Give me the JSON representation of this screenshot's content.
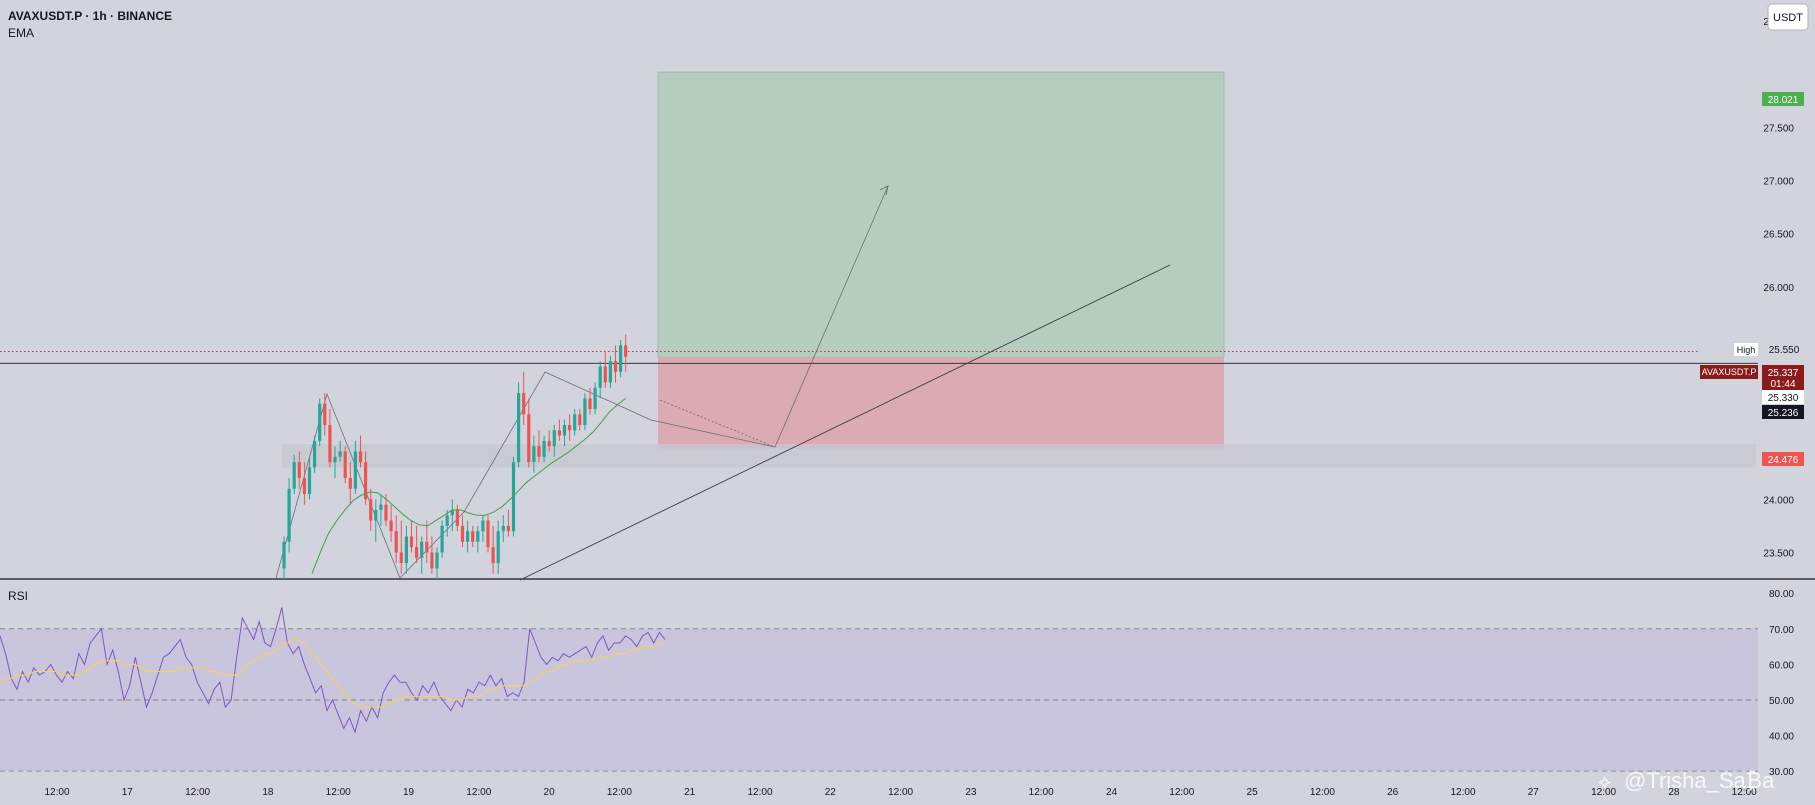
{
  "header": {
    "symbol": "AVAXUSDT.P · 1h · BINANCE",
    "indicator": "EMA",
    "currency_button": "USDT"
  },
  "rsi_panel": {
    "label": "RSI"
  },
  "price_labels": {
    "take_profit": "28.021",
    "high_label": "High",
    "high_value": "25.550",
    "symbol_tag": "AVAXUSDT.P",
    "last_price": "25.337",
    "countdown": "01:44",
    "line_price": "25.330",
    "ema_value": "25.236",
    "stop_loss": "24.476"
  },
  "watermark": "@Trisha_Sa₿a",
  "colors": {
    "background": "#d1d4dc",
    "bull": "#26a69a",
    "bear": "#ef5350",
    "ema": "#43a047",
    "rsi": "#7e57c2",
    "rsi_ma": "#f7d54a",
    "profit_zone": "#b5cdbe",
    "loss_zone": "#dcaab2",
    "tp_label": "#4caf50",
    "sl_label": "#ef5350",
    "symbol_tag": "#8b1a1a"
  },
  "chart_data": [
    {
      "type": "candlestick",
      "title": "AVAXUSDT.P · 1h · BINANCE",
      "y_ticks": [
        "28.500",
        "27.500",
        "27.000",
        "26.500",
        "26.000",
        "24.000",
        "23.500"
      ],
      "x_ticks": [
        "12:00",
        "17",
        "12:00",
        "18",
        "12:00",
        "19",
        "12:00",
        "20",
        "12:00",
        "21",
        "12:00",
        "22",
        "12:00",
        "23",
        "12:00",
        "24",
        "12:00",
        "25",
        "12:00",
        "26",
        "12:00",
        "27",
        "12:00",
        "28",
        "12:00"
      ],
      "ylim": [
        23.25,
        28.7
      ],
      "grid": false,
      "series": [
        {
          "name": "EMA",
          "values": [
            23.3,
            23.5,
            23.68,
            23.8,
            23.9,
            23.99,
            24.04,
            24.07,
            24.06,
            24.0,
            23.93,
            23.86,
            23.8,
            23.76,
            23.75,
            23.8,
            23.85,
            23.9,
            23.9,
            23.87,
            23.85,
            23.85,
            23.88,
            23.93,
            24.0,
            24.08,
            24.16,
            24.22,
            24.28,
            24.34,
            24.39,
            24.44,
            24.5,
            24.56,
            24.63,
            24.72,
            24.82,
            24.89,
            24.95
          ]
        }
      ],
      "candles": [
        {
          "o": 23.35,
          "h": 23.65,
          "l": 23.25,
          "c": 23.6
        },
        {
          "o": 23.6,
          "h": 24.2,
          "l": 23.5,
          "c": 24.1
        },
        {
          "o": 24.1,
          "h": 24.42,
          "l": 24.05,
          "c": 24.35
        },
        {
          "o": 24.35,
          "h": 24.45,
          "l": 24.1,
          "c": 24.2
        },
        {
          "o": 24.2,
          "h": 24.35,
          "l": 23.95,
          "c": 24.05
        },
        {
          "o": 24.05,
          "h": 24.4,
          "l": 24.0,
          "c": 24.3
        },
        {
          "o": 24.3,
          "h": 24.6,
          "l": 24.25,
          "c": 24.55
        },
        {
          "o": 24.55,
          "h": 24.95,
          "l": 24.5,
          "c": 24.9
        },
        {
          "o": 24.9,
          "h": 25.0,
          "l": 24.6,
          "c": 24.7
        },
        {
          "o": 24.7,
          "h": 24.85,
          "l": 24.3,
          "c": 24.35
        },
        {
          "o": 24.35,
          "h": 24.5,
          "l": 24.2,
          "c": 24.4
        },
        {
          "o": 24.4,
          "h": 24.55,
          "l": 24.35,
          "c": 24.45
        },
        {
          "o": 24.45,
          "h": 24.5,
          "l": 24.15,
          "c": 24.2
        },
        {
          "o": 24.2,
          "h": 24.35,
          "l": 23.95,
          "c": 24.1
        },
        {
          "o": 24.1,
          "h": 24.55,
          "l": 24.05,
          "c": 24.45
        },
        {
          "o": 24.45,
          "h": 24.6,
          "l": 24.3,
          "c": 24.35
        },
        {
          "o": 24.35,
          "h": 24.45,
          "l": 23.95,
          "c": 24.0
        },
        {
          "o": 24.0,
          "h": 24.1,
          "l": 23.7,
          "c": 23.8
        },
        {
          "o": 23.8,
          "h": 24.0,
          "l": 23.6,
          "c": 23.9
        },
        {
          "o": 23.9,
          "h": 24.05,
          "l": 23.75,
          "c": 23.95
        },
        {
          "o": 23.95,
          "h": 24.05,
          "l": 23.75,
          "c": 23.8
        },
        {
          "o": 23.8,
          "h": 23.95,
          "l": 23.6,
          "c": 23.7
        },
        {
          "o": 23.7,
          "h": 23.85,
          "l": 23.4,
          "c": 23.5
        },
        {
          "o": 23.5,
          "h": 23.8,
          "l": 23.3,
          "c": 23.4
        },
        {
          "o": 23.4,
          "h": 23.75,
          "l": 23.3,
          "c": 23.65
        },
        {
          "o": 23.65,
          "h": 23.8,
          "l": 23.5,
          "c": 23.55
        },
        {
          "o": 23.55,
          "h": 23.75,
          "l": 23.4,
          "c": 23.45
        },
        {
          "o": 23.45,
          "h": 23.65,
          "l": 23.3,
          "c": 23.6
        },
        {
          "o": 23.6,
          "h": 23.8,
          "l": 23.4,
          "c": 23.5
        },
        {
          "o": 23.5,
          "h": 23.65,
          "l": 23.3,
          "c": 23.35
        },
        {
          "o": 23.35,
          "h": 23.55,
          "l": 23.25,
          "c": 23.5
        },
        {
          "o": 23.5,
          "h": 23.8,
          "l": 23.45,
          "c": 23.75
        },
        {
          "o": 23.75,
          "h": 23.9,
          "l": 23.65,
          "c": 23.85
        },
        {
          "o": 23.85,
          "h": 24.0,
          "l": 23.7,
          "c": 23.9
        },
        {
          "o": 23.9,
          "h": 23.95,
          "l": 23.7,
          "c": 23.75
        },
        {
          "o": 23.75,
          "h": 23.85,
          "l": 23.55,
          "c": 23.6
        },
        {
          "o": 23.6,
          "h": 23.8,
          "l": 23.5,
          "c": 23.7
        },
        {
          "o": 23.7,
          "h": 23.75,
          "l": 23.55,
          "c": 23.6
        },
        {
          "o": 23.6,
          "h": 23.75,
          "l": 23.5,
          "c": 23.7
        },
        {
          "o": 23.7,
          "h": 23.85,
          "l": 23.6,
          "c": 23.8
        },
        {
          "o": 23.8,
          "h": 23.85,
          "l": 23.5,
          "c": 23.55
        },
        {
          "o": 23.55,
          "h": 23.75,
          "l": 23.3,
          "c": 23.4
        },
        {
          "o": 23.4,
          "h": 23.8,
          "l": 23.3,
          "c": 23.7
        },
        {
          "o": 23.7,
          "h": 23.85,
          "l": 23.6,
          "c": 23.75
        },
        {
          "o": 23.75,
          "h": 23.9,
          "l": 23.65,
          "c": 23.7
        },
        {
          "o": 23.7,
          "h": 24.4,
          "l": 23.65,
          "c": 24.35
        },
        {
          "o": 24.35,
          "h": 25.1,
          "l": 24.3,
          "c": 25.0
        },
        {
          "o": 25.0,
          "h": 25.2,
          "l": 24.7,
          "c": 24.8
        },
        {
          "o": 24.8,
          "h": 24.95,
          "l": 24.3,
          "c": 24.35
        },
        {
          "o": 24.35,
          "h": 24.6,
          "l": 24.25,
          "c": 24.5
        },
        {
          "o": 24.5,
          "h": 24.65,
          "l": 24.35,
          "c": 24.4
        },
        {
          "o": 24.4,
          "h": 24.6,
          "l": 24.35,
          "c": 24.55
        },
        {
          "o": 24.55,
          "h": 24.65,
          "l": 24.45,
          "c": 24.5
        },
        {
          "o": 24.5,
          "h": 24.7,
          "l": 24.4,
          "c": 24.65
        },
        {
          "o": 24.65,
          "h": 24.75,
          "l": 24.55,
          "c": 24.6
        },
        {
          "o": 24.6,
          "h": 24.75,
          "l": 24.5,
          "c": 24.7
        },
        {
          "o": 24.7,
          "h": 24.8,
          "l": 24.55,
          "c": 24.65
        },
        {
          "o": 24.65,
          "h": 24.85,
          "l": 24.6,
          "c": 24.8
        },
        {
          "o": 24.8,
          "h": 24.85,
          "l": 24.65,
          "c": 24.7
        },
        {
          "o": 24.7,
          "h": 25.0,
          "l": 24.65,
          "c": 24.95
        },
        {
          "o": 24.95,
          "h": 25.05,
          "l": 24.8,
          "c": 24.85
        },
        {
          "o": 24.85,
          "h": 25.1,
          "l": 24.8,
          "c": 25.05
        },
        {
          "o": 25.05,
          "h": 25.3,
          "l": 24.95,
          "c": 25.25
        },
        {
          "o": 25.25,
          "h": 25.4,
          "l": 25.05,
          "c": 25.1
        },
        {
          "o": 25.1,
          "h": 25.35,
          "l": 25.05,
          "c": 25.3
        },
        {
          "o": 25.3,
          "h": 25.45,
          "l": 25.1,
          "c": 25.2
        },
        {
          "o": 25.2,
          "h": 25.5,
          "l": 25.15,
          "c": 25.45
        },
        {
          "o": 25.45,
          "h": 25.55,
          "l": 25.2,
          "c": 25.34
        }
      ],
      "levels": {
        "take_profit": 28.021,
        "entry": 25.337,
        "stop_loss": 24.476,
        "high": 25.55
      }
    },
    {
      "type": "line",
      "title": "RSI",
      "y_ticks": [
        "80.00",
        "70.00",
        "60.00",
        "50.00",
        "40.00",
        "30.00"
      ],
      "ylim": [
        27.5,
        84
      ],
      "bands": [
        30,
        50,
        70
      ],
      "series": [
        {
          "name": "RSI",
          "values": [
            68,
            63,
            56,
            53,
            58,
            55,
            59,
            57,
            58,
            60,
            57,
            55,
            58,
            56,
            63,
            60,
            66,
            68,
            70,
            60,
            64,
            58,
            50,
            54,
            62,
            55,
            48,
            52,
            57,
            62,
            63,
            65,
            67,
            62,
            60,
            55,
            52,
            49,
            53,
            55,
            48,
            50,
            62,
            73,
            70,
            67,
            72,
            66,
            65,
            70,
            76,
            66,
            63,
            65,
            60,
            56,
            52,
            54,
            47,
            50,
            46,
            42,
            45,
            41,
            47,
            44,
            48,
            45,
            52,
            55,
            57,
            55,
            55,
            52,
            50,
            54,
            52,
            55,
            51,
            49,
            47,
            50,
            48,
            53,
            52,
            55,
            54,
            57,
            54,
            56,
            51,
            52,
            51,
            55,
            70,
            66,
            62,
            60,
            62,
            61,
            63,
            62,
            63,
            64,
            65,
            62,
            66,
            68,
            64,
            66,
            66,
            68,
            67,
            65,
            68,
            69,
            66,
            69,
            67
          ]
        },
        {
          "name": "RSI-based MA",
          "values": [
            55,
            56,
            56,
            57,
            57,
            57,
            58,
            58,
            58,
            58,
            58,
            57,
            57,
            57,
            57,
            58,
            59,
            60,
            61,
            61,
            61,
            61,
            60,
            60,
            60,
            59,
            58,
            58,
            58,
            58,
            58,
            58,
            59,
            59,
            59,
            59,
            59,
            58,
            58,
            57,
            57,
            57,
            57,
            58,
            60,
            61,
            62,
            63,
            63,
            64,
            66,
            66,
            67,
            67,
            66,
            64,
            62,
            60,
            58,
            56,
            54,
            52,
            50,
            49,
            48,
            48,
            48,
            48,
            48,
            49,
            50,
            50,
            51,
            51,
            51,
            51,
            51,
            51,
            51,
            51,
            50,
            50,
            50,
            51,
            51,
            51,
            52,
            53,
            53,
            54,
            54,
            54,
            54,
            54,
            55,
            56,
            57,
            58,
            58,
            59,
            60,
            60,
            61,
            61,
            61,
            61,
            62,
            62,
            62,
            63,
            63,
            63,
            64,
            64,
            65,
            65,
            65,
            66,
            66
          ]
        }
      ]
    }
  ]
}
